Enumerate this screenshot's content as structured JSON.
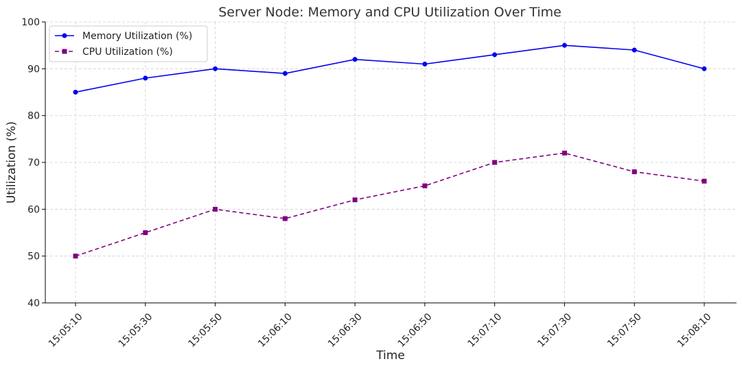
{
  "chart_data": {
    "type": "line",
    "title": "Server Node: Memory and CPU Utilization Over Time",
    "xlabel": "Time",
    "ylabel": "Utilization (%)",
    "categories": [
      "15:05:10",
      "15:05:30",
      "15:05:50",
      "15:06:10",
      "15:06:30",
      "15:06:50",
      "15:07:10",
      "15:07:30",
      "15:07:50",
      "15:08:10"
    ],
    "ylim": [
      40,
      100
    ],
    "yticks": [
      40,
      50,
      60,
      70,
      80,
      90,
      100
    ],
    "grid": true,
    "legend_position": "top-left",
    "series": [
      {
        "name": "Memory Utilization (%)",
        "values": [
          85,
          88,
          90,
          89,
          92,
          91,
          93,
          95,
          94,
          90
        ],
        "color": "#0000ee",
        "marker": "circle",
        "line": "solid"
      },
      {
        "name": "CPU Utilization (%)",
        "values": [
          50,
          55,
          60,
          58,
          62,
          65,
          70,
          72,
          68,
          66
        ],
        "color": "#800080",
        "marker": "square",
        "line": "dashed"
      }
    ]
  }
}
